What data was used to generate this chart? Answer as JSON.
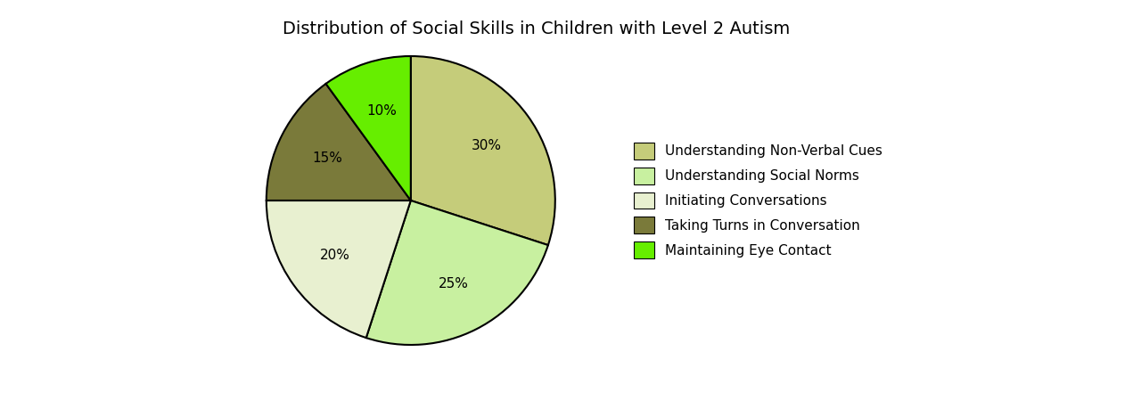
{
  "title": "Distribution of Social Skills in Children with Level 2 Autism",
  "labels": [
    "Understanding Non-Verbal Cues",
    "Understanding Social Norms",
    "Initiating Conversations",
    "Taking Turns in Conversation",
    "Maintaining Eye Contact"
  ],
  "sizes": [
    30,
    25,
    20,
    15,
    10
  ],
  "colors": [
    "#c5cc7a",
    "#c8f0a0",
    "#e8f0d0",
    "#7a7a3a",
    "#66ee00"
  ],
  "startangle": 90,
  "title_fontsize": 14,
  "background_color": "#ffffff",
  "pct_fontsize": 11,
  "legend_fontsize": 11
}
